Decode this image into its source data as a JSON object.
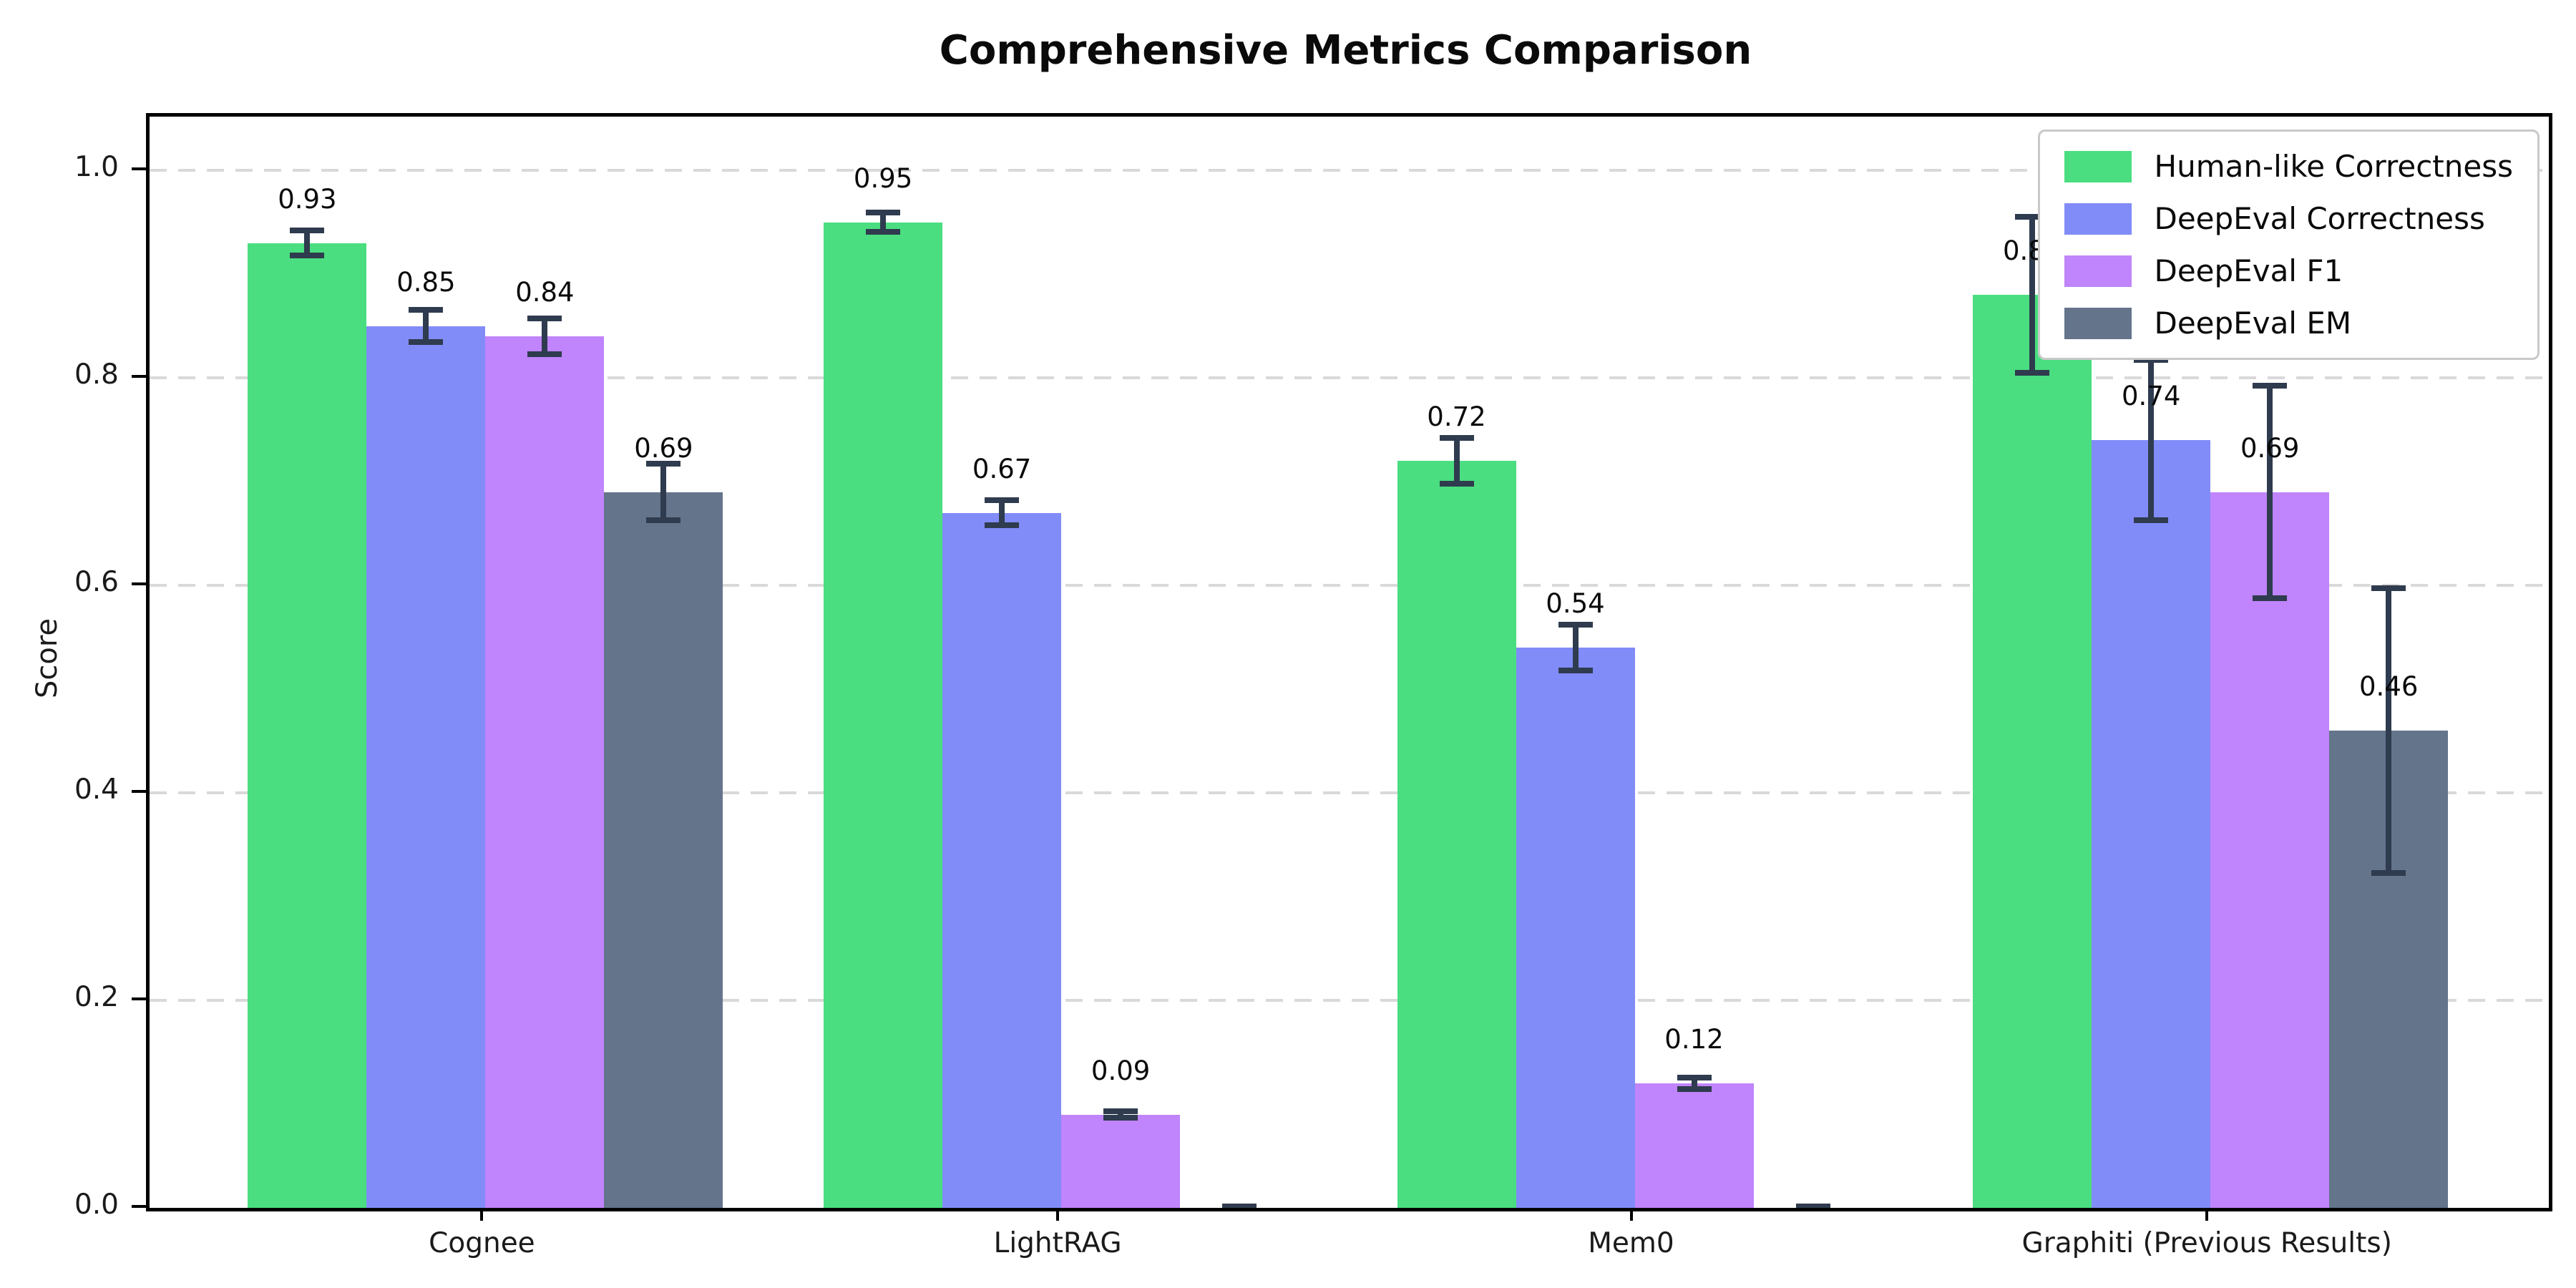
{
  "chart_data": {
    "type": "bar",
    "title": "Comprehensive Metrics Comparison",
    "ylabel": "Score",
    "xlabel": "",
    "categories": [
      "Cognee",
      "LightRAG",
      "Mem0",
      "Graphiti (Previous Results)"
    ],
    "series": [
      {
        "name": "Human-like Correctness",
        "color": "#4ade80",
        "values": [
          0.93,
          0.95,
          0.72,
          0.88
        ],
        "errors": [
          0.015,
          0.012,
          0.025,
          0.078
        ],
        "labels": [
          "0.93",
          "0.95",
          "0.72",
          "0.88"
        ]
      },
      {
        "name": "DeepEval Correctness",
        "color": "#818cf8",
        "values": [
          0.85,
          0.67,
          0.54,
          0.74
        ],
        "errors": [
          0.018,
          0.015,
          0.025,
          0.08
        ],
        "labels": [
          "0.85",
          "0.67",
          "0.54",
          "0.74"
        ]
      },
      {
        "name": "DeepEval F1",
        "color": "#c084fc",
        "values": [
          0.84,
          0.09,
          0.12,
          0.69
        ],
        "errors": [
          0.02,
          0.006,
          0.008,
          0.105
        ],
        "labels": [
          "0.84",
          "0.09",
          "0.12",
          "0.69"
        ]
      },
      {
        "name": "DeepEval EM",
        "color": "#64748b",
        "values": [
          0.69,
          0.0,
          0.0,
          0.46
        ],
        "errors": [
          0.03,
          0.004,
          0.004,
          0.14
        ],
        "labels": [
          "0.69",
          "",
          "",
          "0.46"
        ]
      }
    ],
    "ylim": [
      0,
      1.05
    ],
    "yticks": [
      0.0,
      0.2,
      0.4,
      0.6,
      0.8,
      1.0
    ],
    "grid": "horizontal-dashed",
    "legend_position": "upper-right",
    "error_bar_color": "#2f3b4e",
    "gridline_color": "#d9d9d9",
    "axis_color": "#000000"
  }
}
